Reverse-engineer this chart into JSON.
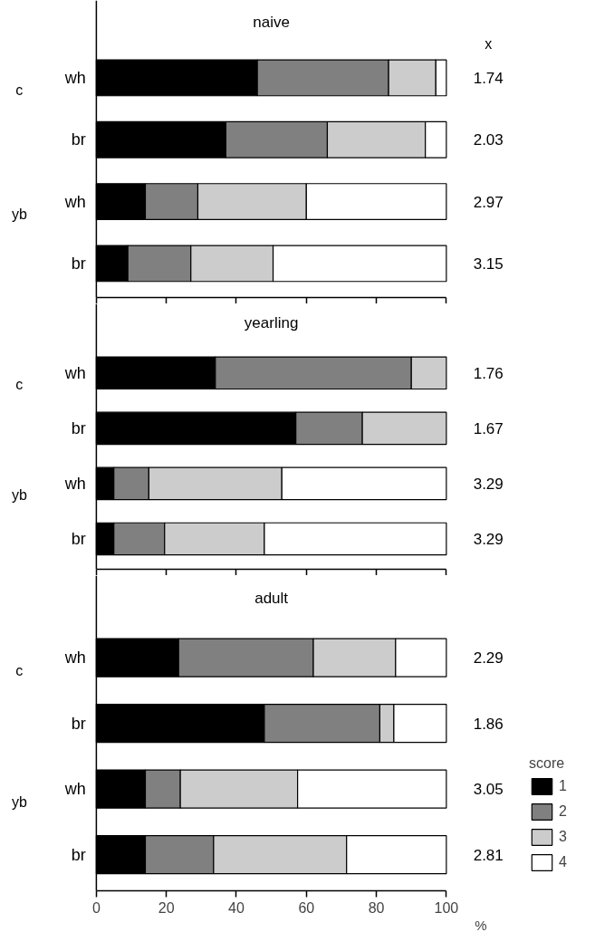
{
  "chart_data": [
    {
      "type": "bar",
      "orientation": "horizontal",
      "stacked": true,
      "title": "naive",
      "categories": [
        "wh",
        "br",
        "wh",
        "br"
      ],
      "series": [
        {
          "color": "#000000",
          "values": [
            46,
            37,
            14,
            9
          ]
        },
        {
          "color": "#808080",
          "values": [
            37.5,
            29,
            15,
            18
          ]
        },
        {
          "color": "#cccccc",
          "values": [
            13.5,
            28,
            31,
            23.5
          ]
        },
        {
          "color": "#ffffff",
          "values": [
            3,
            6,
            40,
            49.5
          ]
        }
      ],
      "annotations": [
        "c",
        "yb",
        "x",
        "1.74",
        "2.03",
        "2.97",
        "3.15"
      ],
      "xlim": [
        0,
        100
      ],
      "xticks": [
        0,
        20,
        40,
        60,
        80,
        100
      ],
      "tick_labels": "y",
      "grid": false,
      "legend": false
    },
    {
      "type": "bar",
      "orientation": "horizontal",
      "stacked": true,
      "title": "yearling",
      "categories": [
        "wh",
        "br",
        "wh",
        "br"
      ],
      "series": [
        {
          "color": "#000000",
          "values": [
            34,
            57,
            5,
            5
          ]
        },
        {
          "color": "#808080",
          "values": [
            56,
            19,
            10,
            14.5
          ]
        },
        {
          "color": "#cccccc",
          "values": [
            10,
            24,
            38,
            28.5
          ]
        },
        {
          "color": "#ffffff",
          "values": [
            null,
            null,
            47,
            52
          ]
        }
      ],
      "annotations": [
        "c",
        "yb",
        "1.76",
        "1.67",
        "3.29",
        "3.29"
      ],
      "xlim": [
        0,
        100
      ],
      "xticks": [
        0,
        20,
        40,
        60,
        80,
        100
      ],
      "tick_labels": "y",
      "grid": false,
      "legend": false
    },
    {
      "type": "bar",
      "orientation": "horizontal",
      "stacked": true,
      "title": "adult",
      "categories": [
        "wh",
        "br",
        "wh",
        "br"
      ],
      "series": [
        {
          "name": "1",
          "color": "#000000",
          "values": [
            23.5,
            48,
            14,
            14
          ]
        },
        {
          "name": "2",
          "color": "#808080",
          "values": [
            38.5,
            33,
            10,
            19.5
          ]
        },
        {
          "name": "3",
          "color": "#cccccc",
          "values": [
            23.5,
            4,
            33.5,
            38
          ]
        },
        {
          "name": "4",
          "color": "#ffffff",
          "values": [
            14.5,
            15,
            42.5,
            28.5
          ]
        }
      ],
      "annotations": [
        "c",
        "yb",
        "2.29",
        "1.86",
        "3.05",
        "2.81"
      ],
      "legend_title": "score",
      "xlabel": "%",
      "xlim": [
        0,
        100
      ],
      "xticks": [
        0,
        20,
        40,
        60,
        80,
        100
      ],
      "grid": false,
      "legend": "bottom right"
    }
  ]
}
